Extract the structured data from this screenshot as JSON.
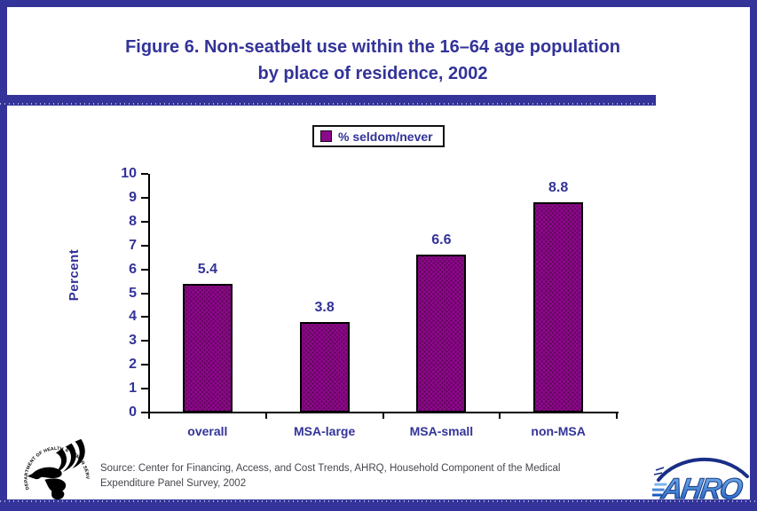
{
  "page": {
    "title_line1": "Figure 6. Non-seatbelt use within the 16–64 age population",
    "title_line2": "by place of residence, 2002",
    "frame_color": "#333399",
    "background": "#ffffff"
  },
  "legend": {
    "label": "% seldom/never",
    "swatch_color": "#8a0889"
  },
  "chart_data": {
    "type": "bar",
    "title": "Figure 6. Non-seatbelt use within the 16–64 age population by place of residence, 2002",
    "categories": [
      "overall",
      "MSA-large",
      "MSA-small",
      "non-MSA"
    ],
    "series": [
      {
        "name": "% seldom/never",
        "values": [
          5.4,
          3.8,
          6.6,
          8.8
        ]
      }
    ],
    "value_labels": [
      "5.4",
      "3.8",
      "6.6",
      "8.8"
    ],
    "xlabel": "",
    "ylabel": "Percent",
    "ylim": [
      0,
      10
    ],
    "yticks": [
      0,
      1,
      2,
      3,
      4,
      5,
      6,
      7,
      8,
      9,
      10
    ],
    "grid": false,
    "legend_position": "top-center",
    "bar_color": "#8a0889",
    "label_color": "#333399",
    "axis_color": "#000000"
  },
  "footer": {
    "source_line1": "Source: Center for Financing, Access, and Cost Trends, AHRQ, Household Component of the Medical",
    "source_line2": "Expenditure Panel Survey, 2002",
    "hhs_circle_text": "DEPARTMENT OF HEALTH & HUMAN SERVICES·USA",
    "ahrq_text": "AHRQ"
  }
}
